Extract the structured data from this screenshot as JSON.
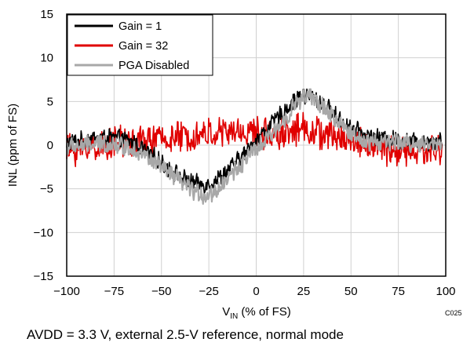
{
  "chart_data": {
    "type": "line",
    "xlabel_main": "V",
    "xlabel_sub": "IN",
    "xlabel_rest": " (% of FS)",
    "ylabel": "INL (ppm of FS)",
    "xlim": [
      -100,
      100
    ],
    "ylim": [
      -15,
      15
    ],
    "x_ticks": [
      -100,
      -75,
      -50,
      -25,
      0,
      25,
      50,
      75,
      100
    ],
    "y_ticks": [
      15,
      10,
      5,
      0,
      -5,
      -10,
      -15
    ],
    "x_tick_labels": [
      "−100",
      "−75",
      "−50",
      "−25",
      "0",
      "25",
      "50",
      "75",
      "100"
    ],
    "y_tick_labels": [
      "15",
      "10",
      "5",
      "0",
      "−5",
      "−10",
      "−15"
    ],
    "grid": true,
    "legend_position": "top-left",
    "series": [
      {
        "name": "Gain = 1",
        "color": "#000000",
        "x": [
          -100,
          -95,
          -90,
          -85,
          -80,
          -75,
          -70,
          -65,
          -60,
          -55,
          -50,
          -45,
          -40,
          -35,
          -30,
          -25,
          -20,
          -15,
          -10,
          -5,
          0,
          5,
          10,
          15,
          20,
          25,
          30,
          35,
          40,
          45,
          50,
          55,
          60,
          65,
          70,
          75,
          80,
          85,
          90,
          95,
          98
        ],
        "y": [
          0.3,
          0.4,
          0.6,
          0.8,
          0.9,
          0.8,
          0.6,
          0.3,
          -0.3,
          -1.2,
          -2.0,
          -2.8,
          -3.6,
          -4.2,
          -4.5,
          -4.4,
          -3.8,
          -2.9,
          -1.8,
          -0.7,
          0.6,
          1.7,
          2.8,
          4.0,
          5.0,
          5.7,
          5.5,
          4.8,
          3.8,
          2.8,
          2.0,
          1.4,
          1.0,
          0.8,
          0.7,
          0.6,
          0.5,
          0.5,
          0.4,
          0.5,
          0.6
        ]
      },
      {
        "name": "Gain = 32",
        "color": "#e00000",
        "x": [
          -100,
          -95,
          -90,
          -85,
          -80,
          -75,
          -70,
          -65,
          -60,
          -55,
          -50,
          -45,
          -40,
          -35,
          -30,
          -25,
          -20,
          -15,
          -10,
          -5,
          0,
          5,
          10,
          15,
          20,
          25,
          30,
          35,
          40,
          45,
          50,
          55,
          60,
          65,
          70,
          75,
          80,
          85,
          90,
          95,
          98
        ],
        "y": [
          -0.6,
          -0.5,
          -0.3,
          -0.1,
          0.1,
          0.2,
          0.4,
          0.4,
          0.5,
          0.6,
          0.7,
          0.8,
          0.9,
          1.0,
          1.2,
          1.3,
          1.4,
          1.4,
          1.5,
          1.5,
          1.4,
          1.3,
          1.3,
          1.5,
          1.8,
          2.0,
          1.6,
          1.2,
          1.0,
          0.8,
          0.6,
          0.3,
          0.0,
          -0.3,
          -0.5,
          -0.7,
          -0.8,
          -0.8,
          -0.7,
          -0.6,
          -0.5
        ]
      },
      {
        "name": "PGA Disabled",
        "color": "#a8a8a8",
        "x": [
          -100,
          -95,
          -90,
          -85,
          -80,
          -75,
          -70,
          -65,
          -60,
          -55,
          -50,
          -45,
          -40,
          -35,
          -30,
          -25,
          -20,
          -15,
          -10,
          -5,
          0,
          5,
          10,
          15,
          20,
          25,
          30,
          35,
          40,
          45,
          50,
          55,
          60,
          65,
          70,
          75,
          80,
          85,
          90,
          95,
          98
        ],
        "y": [
          -0.2,
          -0.1,
          0.0,
          0.1,
          0.2,
          0.1,
          -0.1,
          -0.4,
          -1.0,
          -1.8,
          -2.6,
          -3.4,
          -4.2,
          -5.0,
          -5.6,
          -5.8,
          -5.0,
          -3.8,
          -2.6,
          -1.5,
          -0.5,
          0.5,
          1.6,
          3.0,
          4.5,
          5.6,
          5.3,
          4.4,
          3.3,
          2.2,
          1.3,
          0.7,
          0.4,
          0.3,
          0.3,
          0.3,
          0.2,
          0.2,
          0.1,
          0.2,
          0.3
        ]
      }
    ],
    "series_noise": [
      0.9,
      1.6,
      0.9
    ]
  },
  "figure_code": "C025",
  "caption": "AVDD = 3.3 V, external 2.5-V reference, normal mode"
}
